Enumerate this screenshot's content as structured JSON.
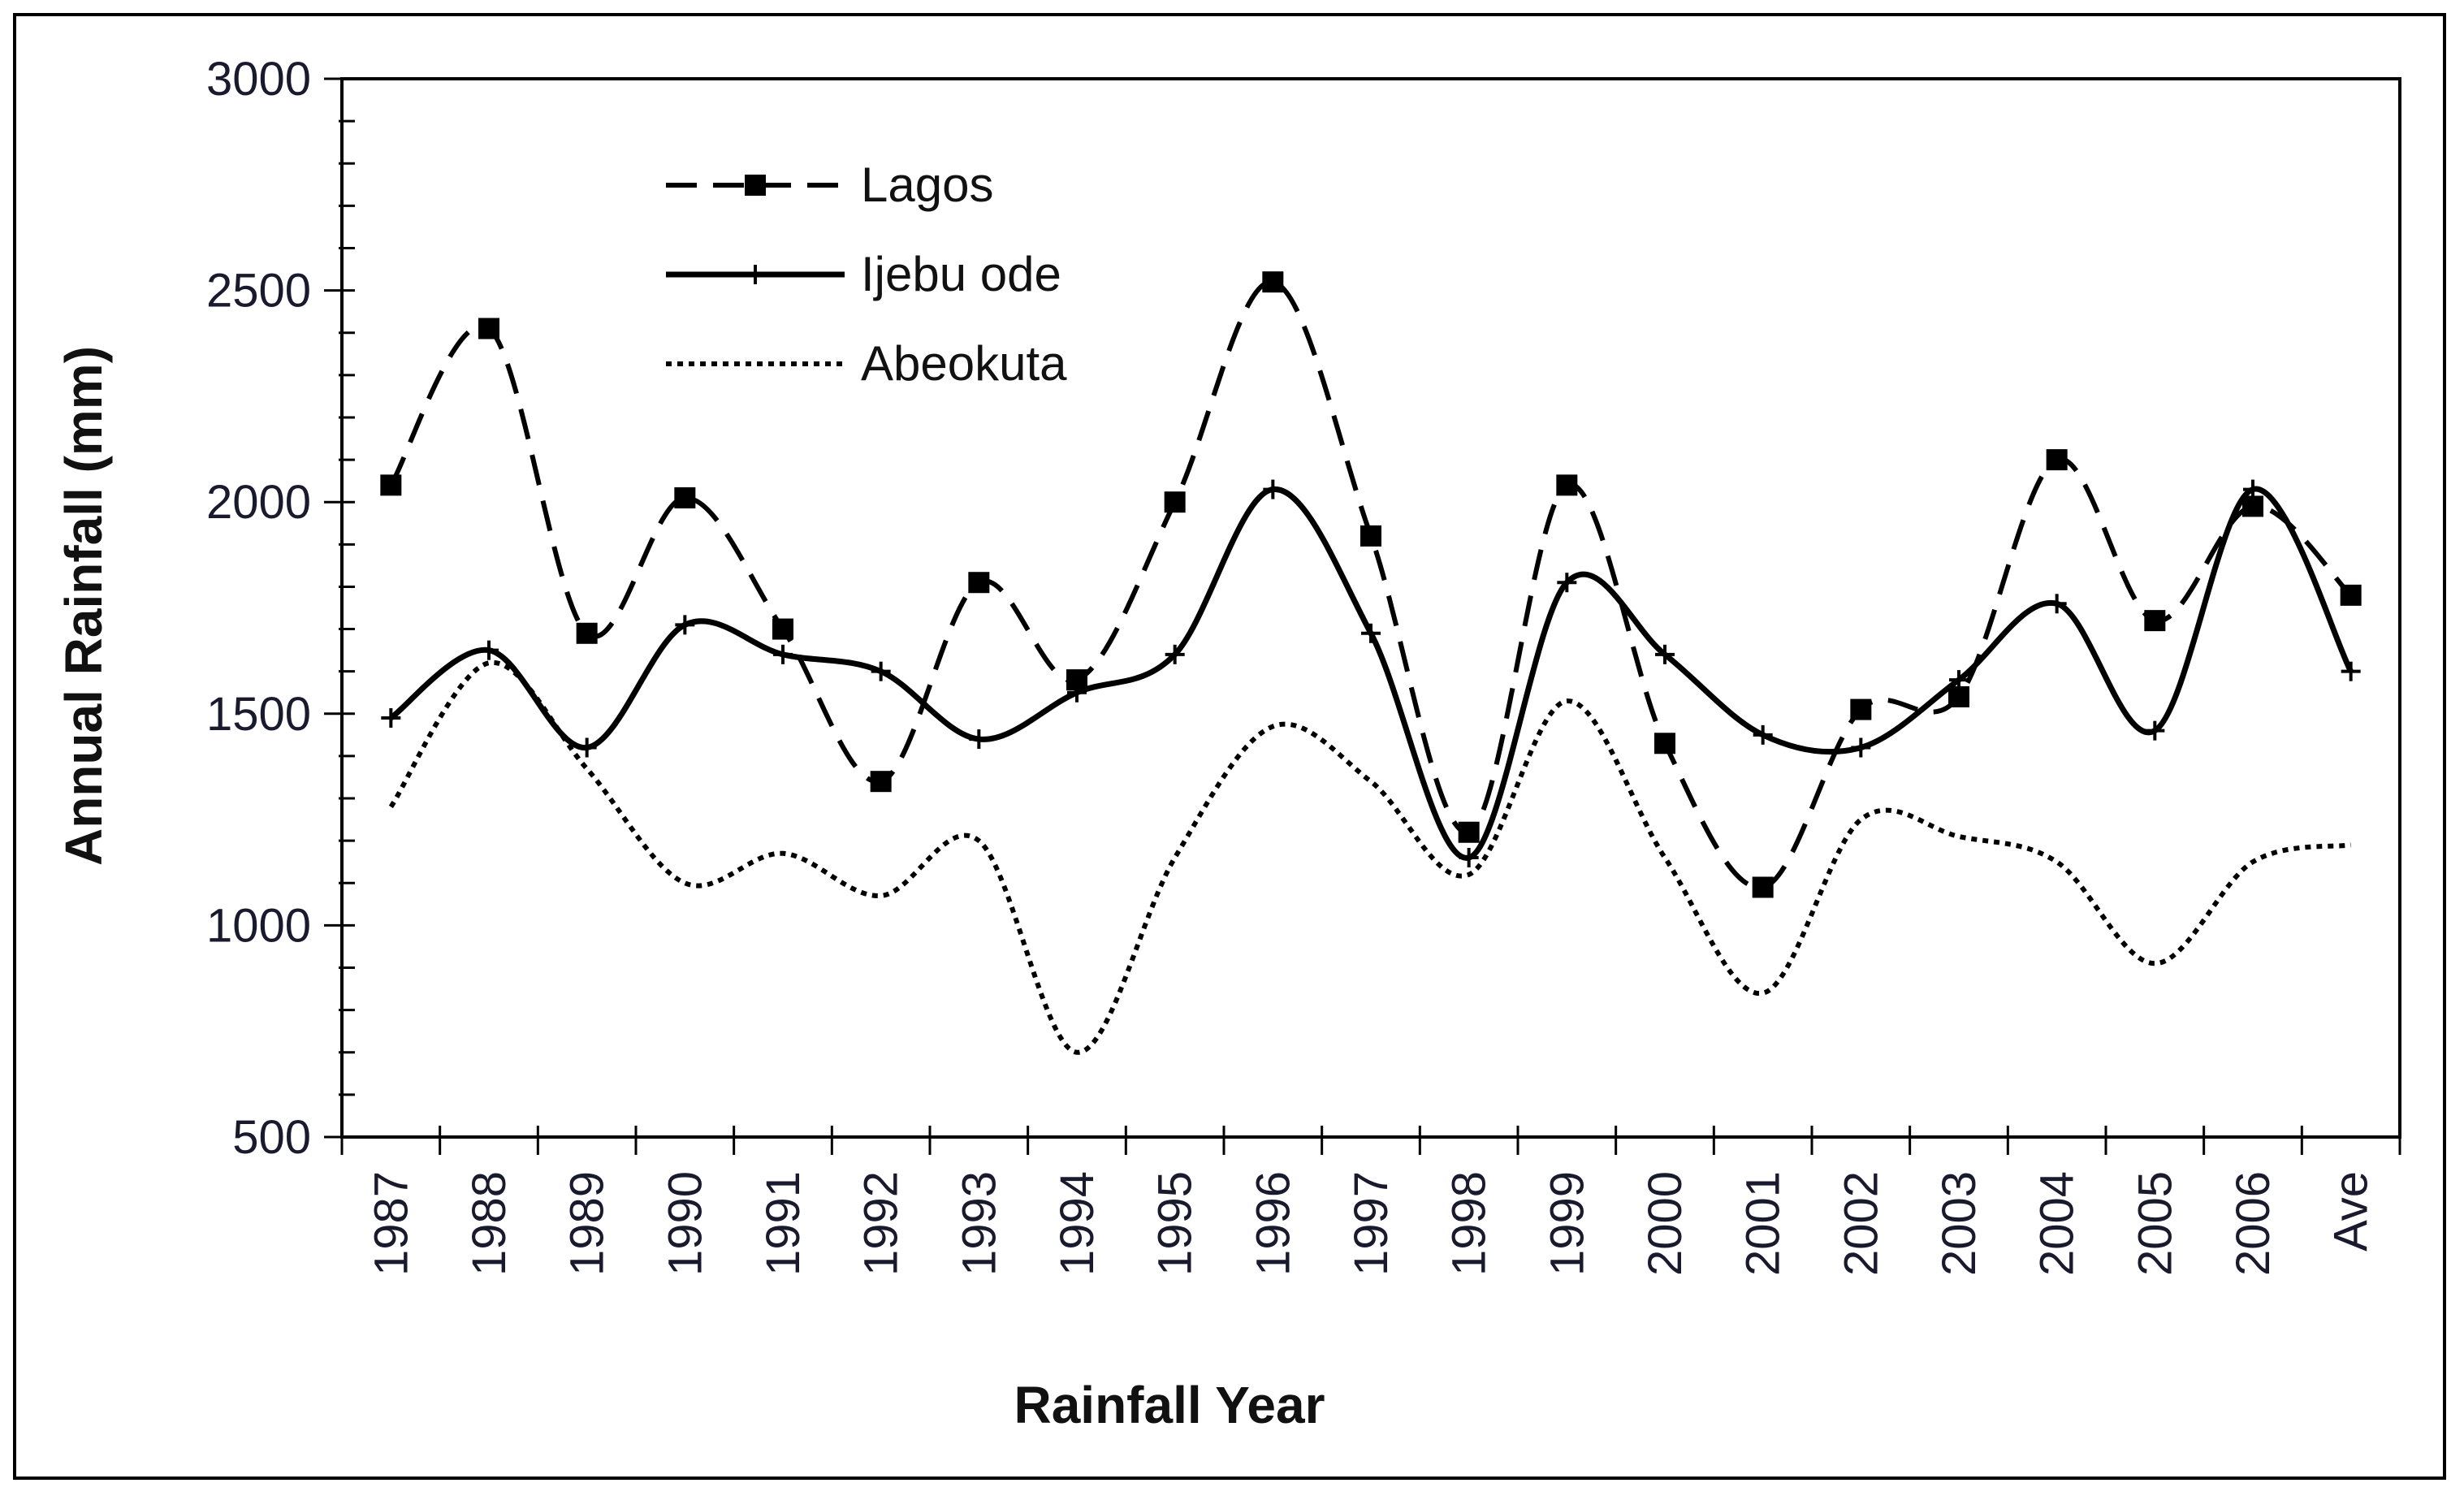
{
  "chart_data": {
    "type": "line",
    "title": "",
    "xlabel": "Rainfall Year",
    "ylabel": "Annual Rainfall (mm)",
    "ylim": [
      500,
      3000
    ],
    "yticks": [
      "500",
      "1000",
      "1500",
      "2000",
      "2500",
      "3000"
    ],
    "categories": [
      "1987",
      "1988",
      "1989",
      "1990",
      "1991",
      "1992",
      "1993",
      "1994",
      "1995",
      "1996",
      "1997",
      "1998",
      "1999",
      "2000",
      "2001",
      "2002",
      "2003",
      "2004",
      "2005",
      "2006",
      "Ave"
    ],
    "legend_position": "top-left",
    "grid": false,
    "series": [
      {
        "name": "Lagos",
        "style": "dashed",
        "marker": "square",
        "values": [
          2040,
          2410,
          1690,
          2010,
          1700,
          1340,
          1810,
          1580,
          2000,
          2520,
          1920,
          1220,
          2040,
          1430,
          1090,
          1510,
          1540,
          2100,
          1720,
          1990,
          1780
        ]
      },
      {
        "name": "Ijebu ode",
        "style": "solid",
        "marker": "cross",
        "values": [
          1490,
          1650,
          1420,
          1710,
          1640,
          1600,
          1440,
          1550,
          1640,
          2030,
          1690,
          1160,
          1810,
          1640,
          1450,
          1420,
          1580,
          1760,
          1460,
          2030,
          1600
        ]
      },
      {
        "name": "Abeokuta",
        "style": "dotted",
        "marker": "none",
        "values": [
          1280,
          1620,
          1370,
          1100,
          1170,
          1070,
          1200,
          700,
          1160,
          1470,
          1340,
          1120,
          1530,
          1160,
          840,
          1250,
          1210,
          1150,
          910,
          1150,
          1190
        ]
      }
    ]
  }
}
